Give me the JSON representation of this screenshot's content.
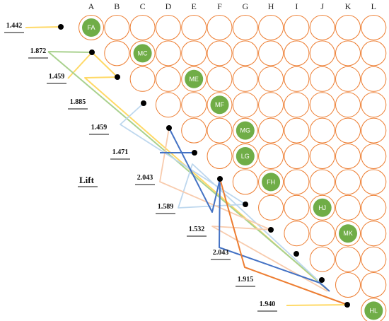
{
  "columns": [
    "A",
    "B",
    "C",
    "D",
    "E",
    "F",
    "G",
    "H",
    "I",
    "J",
    "K",
    "L"
  ],
  "title": "Lift",
  "colors": {
    "circle_stroke": "#ED7D31",
    "node_fill": "#70AD47",
    "dot": "#000000",
    "yellow": "#FFD966",
    "green": "#A9D18E",
    "lightblue": "#BDD7EE",
    "peach": "#F8CBAD",
    "orange": "#ED7D31",
    "blue": "#4472C4"
  },
  "nodes": [
    {
      "label": "FA",
      "row": 0,
      "col": 0
    },
    {
      "label": "MC",
      "row": 1,
      "col": 2
    },
    {
      "label": "ME",
      "row": 2,
      "col": 4
    },
    {
      "label": "MF",
      "row": 3,
      "col": 5
    },
    {
      "label": "MG",
      "row": 4,
      "col": 6
    },
    {
      "label": "LG",
      "row": 5,
      "col": 6
    },
    {
      "label": "FH",
      "row": 6,
      "col": 7
    },
    {
      "label": "HJ",
      "row": 7,
      "col": 9
    },
    {
      "label": "MK",
      "row": 8,
      "col": 10
    },
    {
      "label": "HL",
      "row": 11,
      "col": 11
    }
  ],
  "lift_values": [
    "1.442",
    "1.872",
    "1.459",
    "1.885",
    "1.459",
    "1.471",
    "2.043",
    "1.589",
    "1.532",
    "2.043",
    "1.915",
    "1.940"
  ]
}
